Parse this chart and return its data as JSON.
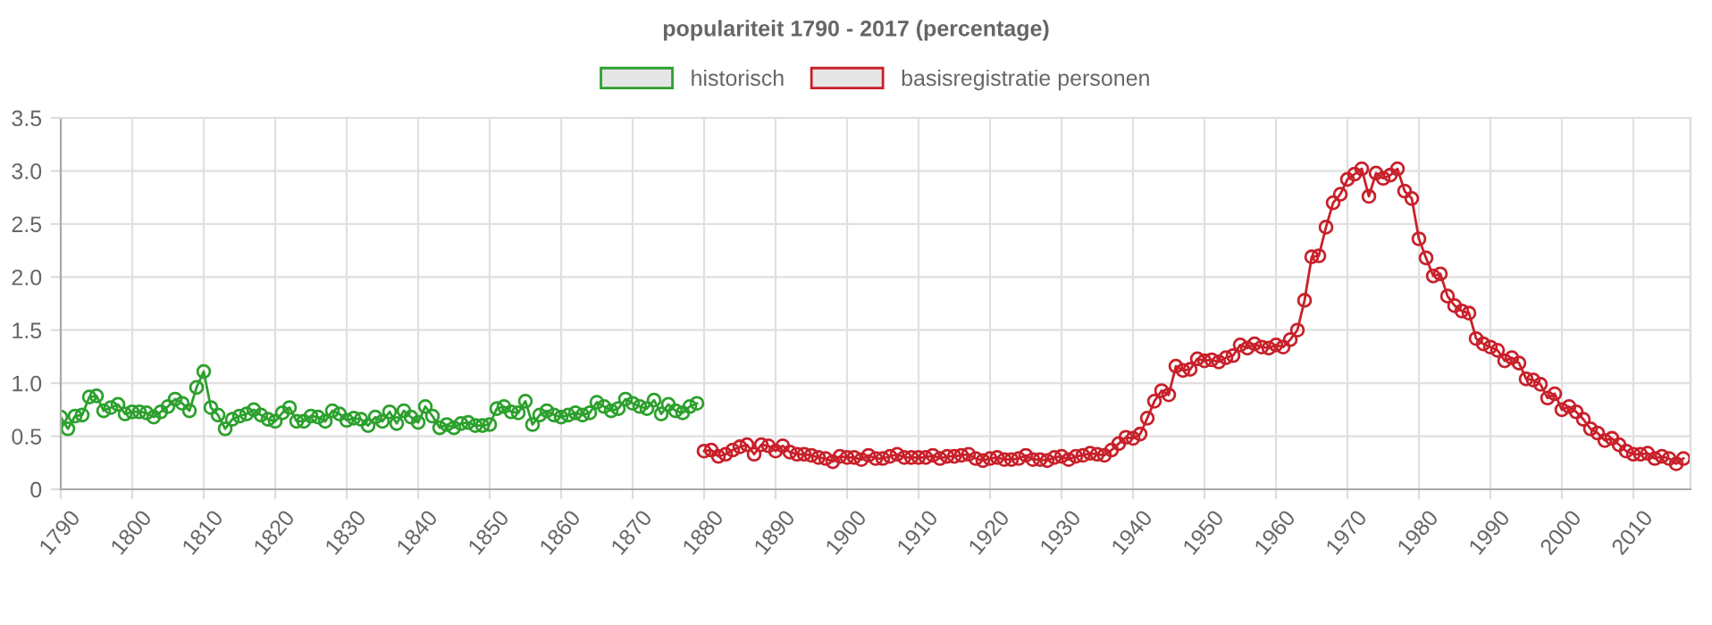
{
  "chart_data": {
    "type": "line",
    "title": "populariteit 1790 - 2017 (percentage)",
    "xlim": [
      1790,
      2018
    ],
    "xticks": [
      1790,
      1800,
      1810,
      1820,
      1830,
      1840,
      1850,
      1860,
      1870,
      1880,
      1890,
      1900,
      1910,
      1920,
      1930,
      1940,
      1950,
      1960,
      1970,
      1980,
      1990,
      2000,
      2010
    ],
    "ylim": [
      0,
      3.5
    ],
    "yticks": [
      0,
      {
        "value": 0.5,
        "label": "0.5"
      },
      {
        "value": 1,
        "label": "1.0"
      },
      {
        "value": 1.5,
        "label": "1.5"
      },
      {
        "value": 2,
        "label": "2.0"
      },
      {
        "value": 2.5,
        "label": "2.5"
      },
      {
        "value": 3,
        "label": "3.0"
      },
      {
        "value": 3.5,
        "label": "3.5"
      }
    ],
    "grid": true,
    "legend": "top",
    "marker": "circle",
    "line_style": "solid",
    "series": [
      {
        "name": "historisch",
        "color": "#2ca02c",
        "x": [
          1790,
          1791,
          1792,
          1793,
          1794,
          1795,
          1796,
          1797,
          1798,
          1799,
          1800,
          1801,
          1802,
          1803,
          1804,
          1805,
          1806,
          1807,
          1808,
          1809,
          1810,
          1811,
          1812,
          1813,
          1814,
          1815,
          1816,
          1817,
          1818,
          1819,
          1820,
          1821,
          1822,
          1823,
          1824,
          1825,
          1826,
          1827,
          1828,
          1829,
          1830,
          1831,
          1832,
          1833,
          1834,
          1835,
          1836,
          1837,
          1838,
          1839,
          1840,
          1841,
          1842,
          1843,
          1844,
          1845,
          1846,
          1847,
          1848,
          1849,
          1850,
          1851,
          1852,
          1853,
          1854,
          1855,
          1856,
          1857,
          1858,
          1859,
          1860,
          1861,
          1862,
          1863,
          1864,
          1865,
          1866,
          1867,
          1868,
          1869,
          1870,
          1871,
          1872,
          1873,
          1874,
          1875,
          1876,
          1877,
          1878,
          1879
        ],
        "values": [
          0.68,
          0.57,
          0.69,
          0.7,
          0.87,
          0.88,
          0.74,
          0.77,
          0.8,
          0.71,
          0.73,
          0.73,
          0.72,
          0.68,
          0.73,
          0.78,
          0.85,
          0.81,
          0.74,
          0.96,
          1.11,
          0.77,
          0.7,
          0.57,
          0.66,
          0.69,
          0.71,
          0.75,
          0.7,
          0.66,
          0.64,
          0.72,
          0.77,
          0.64,
          0.64,
          0.69,
          0.68,
          0.64,
          0.74,
          0.71,
          0.65,
          0.67,
          0.66,
          0.6,
          0.68,
          0.64,
          0.73,
          0.62,
          0.74,
          0.68,
          0.63,
          0.78,
          0.69,
          0.58,
          0.61,
          0.58,
          0.62,
          0.63,
          0.6,
          0.6,
          0.61,
          0.76,
          0.78,
          0.73,
          0.72,
          0.83,
          0.61,
          0.7,
          0.74,
          0.7,
          0.68,
          0.7,
          0.72,
          0.7,
          0.72,
          0.82,
          0.78,
          0.74,
          0.76,
          0.85,
          0.81,
          0.78,
          0.76,
          0.84,
          0.71,
          0.8,
          0.74,
          0.72,
          0.78,
          0.81
        ]
      },
      {
        "name": "basisregistratie personen",
        "color": "#c8202a",
        "x": [
          1880,
          1881,
          1882,
          1883,
          1884,
          1885,
          1886,
          1887,
          1888,
          1889,
          1890,
          1891,
          1892,
          1893,
          1894,
          1895,
          1896,
          1897,
          1898,
          1899,
          1900,
          1901,
          1902,
          1903,
          1904,
          1905,
          1906,
          1907,
          1908,
          1909,
          1910,
          1911,
          1912,
          1913,
          1914,
          1915,
          1916,
          1917,
          1918,
          1919,
          1920,
          1921,
          1922,
          1923,
          1924,
          1925,
          1926,
          1927,
          1928,
          1929,
          1930,
          1931,
          1932,
          1933,
          1934,
          1935,
          1936,
          1937,
          1938,
          1939,
          1940,
          1941,
          1942,
          1943,
          1944,
          1945,
          1946,
          1947,
          1948,
          1949,
          1950,
          1951,
          1952,
          1953,
          1954,
          1955,
          1956,
          1957,
          1958,
          1959,
          1960,
          1961,
          1962,
          1963,
          1964,
          1965,
          1966,
          1967,
          1968,
          1969,
          1970,
          1971,
          1972,
          1973,
          1974,
          1975,
          1976,
          1977,
          1978,
          1979,
          1980,
          1981,
          1982,
          1983,
          1984,
          1985,
          1986,
          1987,
          1988,
          1989,
          1990,
          1991,
          1992,
          1993,
          1994,
          1995,
          1996,
          1997,
          1998,
          1999,
          2000,
          2001,
          2002,
          2003,
          2004,
          2005,
          2006,
          2007,
          2008,
          2009,
          2010,
          2011,
          2012,
          2013,
          2014,
          2015,
          2016,
          2017
        ],
        "values": [
          0.36,
          0.37,
          0.31,
          0.33,
          0.37,
          0.4,
          0.42,
          0.33,
          0.42,
          0.41,
          0.36,
          0.41,
          0.35,
          0.33,
          0.33,
          0.32,
          0.3,
          0.29,
          0.26,
          0.31,
          0.3,
          0.3,
          0.28,
          0.32,
          0.29,
          0.29,
          0.31,
          0.33,
          0.3,
          0.3,
          0.3,
          0.3,
          0.32,
          0.29,
          0.31,
          0.31,
          0.32,
          0.33,
          0.29,
          0.27,
          0.29,
          0.3,
          0.28,
          0.28,
          0.29,
          0.32,
          0.28,
          0.28,
          0.27,
          0.3,
          0.31,
          0.28,
          0.31,
          0.32,
          0.34,
          0.33,
          0.32,
          0.37,
          0.43,
          0.49,
          0.48,
          0.52,
          0.67,
          0.83,
          0.93,
          0.89,
          1.16,
          1.12,
          1.13,
          1.23,
          1.21,
          1.22,
          1.2,
          1.24,
          1.26,
          1.36,
          1.33,
          1.37,
          1.34,
          1.33,
          1.36,
          1.34,
          1.41,
          1.5,
          1.78,
          2.19,
          2.2,
          2.47,
          2.7,
          2.78,
          2.92,
          2.97,
          3.02,
          2.76,
          2.98,
          2.93,
          2.96,
          3.02,
          2.81,
          2.74,
          2.36,
          2.18,
          2.01,
          2.03,
          1.82,
          1.73,
          1.68,
          1.66,
          1.42,
          1.37,
          1.34,
          1.31,
          1.21,
          1.24,
          1.19,
          1.04,
          1.03,
          0.99,
          0.86,
          0.9,
          0.75,
          0.78,
          0.73,
          0.66,
          0.57,
          0.53,
          0.46,
          0.48,
          0.42,
          0.36,
          0.33,
          0.33,
          0.34,
          0.29,
          0.31,
          0.29,
          0.24,
          0.29
        ]
      }
    ]
  }
}
